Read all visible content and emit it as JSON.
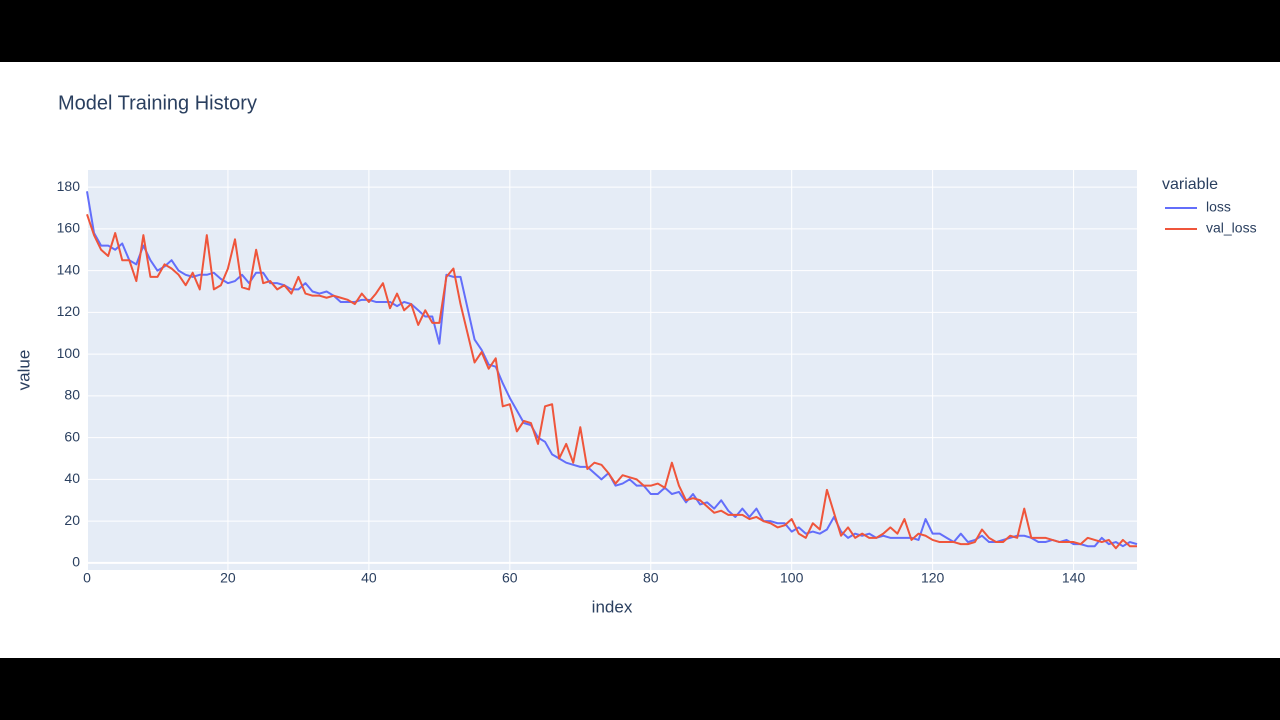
{
  "chart_data": {
    "type": "line",
    "title": "Model Training History",
    "x_label": "index",
    "y_label": "value",
    "legend_title": "variable",
    "legend_position": "right",
    "x": [
      0,
      1,
      2,
      3,
      4,
      5,
      6,
      7,
      8,
      9,
      10,
      11,
      12,
      13,
      14,
      15,
      16,
      17,
      18,
      19,
      20,
      21,
      22,
      23,
      24,
      25,
      26,
      27,
      28,
      29,
      30,
      31,
      32,
      33,
      34,
      35,
      36,
      37,
      38,
      39,
      40,
      41,
      42,
      43,
      44,
      45,
      46,
      47,
      48,
      49,
      50,
      51,
      52,
      53,
      54,
      55,
      56,
      57,
      58,
      59,
      60,
      61,
      62,
      63,
      64,
      65,
      66,
      67,
      68,
      69,
      70,
      71,
      72,
      73,
      74,
      75,
      76,
      77,
      78,
      79,
      80,
      81,
      82,
      83,
      84,
      85,
      86,
      87,
      88,
      89,
      90,
      91,
      92,
      93,
      94,
      95,
      96,
      97,
      98,
      99,
      100,
      101,
      102,
      103,
      104,
      105,
      106,
      107,
      108,
      109,
      110,
      111,
      112,
      113,
      114,
      115,
      116,
      117,
      118,
      119,
      120,
      121,
      122,
      123,
      124,
      125,
      126,
      127,
      128,
      129,
      130,
      131,
      132,
      133,
      134,
      135,
      136,
      137,
      138,
      139,
      140,
      141,
      142,
      143,
      144,
      145,
      146,
      147,
      148,
      149
    ],
    "series": [
      {
        "name": "loss",
        "color": "#636efa",
        "values": [
          178,
          158,
          152,
          152,
          150,
          153,
          145,
          143,
          152,
          145,
          140,
          142,
          145,
          140,
          138,
          137,
          138,
          138,
          139,
          136,
          134,
          135,
          138,
          134,
          139,
          139,
          134,
          134,
          133,
          131,
          131,
          134,
          130,
          129,
          130,
          128,
          125,
          125,
          125,
          126,
          126,
          125,
          125,
          125,
          123,
          125,
          124,
          121,
          118,
          118,
          105,
          138,
          137,
          137,
          122,
          107,
          102,
          95,
          94,
          86,
          79,
          73,
          67,
          66,
          60,
          58,
          52,
          50,
          48,
          47,
          46,
          46,
          43,
          40,
          43,
          37,
          38,
          40,
          37,
          37,
          33,
          33,
          36,
          33,
          34,
          29,
          33,
          28,
          29,
          26,
          30,
          25,
          22,
          26,
          22,
          26,
          20,
          20,
          19,
          19,
          15,
          17,
          14,
          15,
          14,
          16,
          22,
          15,
          12,
          14,
          13,
          14,
          12,
          13,
          12,
          12,
          12,
          12,
          11,
          21,
          14,
          14,
          12,
          10,
          14,
          10,
          11,
          13,
          10,
          10,
          11,
          12,
          13,
          13,
          12,
          10,
          10,
          11,
          10,
          11,
          9,
          9,
          8,
          8,
          12,
          9,
          10,
          8,
          10,
          9
        ]
      },
      {
        "name": "val_loss",
        "color": "#EF553B",
        "values": [
          167,
          157,
          150,
          147,
          158,
          145,
          145,
          135,
          157,
          137,
          137,
          143,
          141,
          138,
          133,
          139,
          131,
          157,
          131,
          133,
          141,
          155,
          132,
          131,
          150,
          134,
          135,
          131,
          133,
          129,
          137,
          129,
          128,
          128,
          127,
          128,
          127,
          126,
          124,
          129,
          125,
          129,
          134,
          122,
          129,
          121,
          124,
          114,
          121,
          115,
          115,
          137,
          141,
          124,
          110,
          96,
          101,
          93,
          98,
          75,
          76,
          63,
          68,
          67,
          57,
          75,
          76,
          50,
          57,
          48,
          65,
          45,
          48,
          47,
          43,
          38,
          42,
          41,
          40,
          37,
          37,
          38,
          36,
          48,
          37,
          30,
          31,
          30,
          27,
          24,
          25,
          23,
          23,
          23,
          21,
          22,
          20,
          19,
          17,
          18,
          21,
          14,
          12,
          19,
          16,
          35,
          24,
          13,
          17,
          12,
          14,
          12,
          12,
          14,
          17,
          14,
          21,
          11,
          14,
          13,
          11,
          10,
          10,
          10,
          9,
          9,
          10,
          16,
          12,
          10,
          10,
          13,
          12,
          26,
          12,
          12,
          12,
          11,
          10,
          10,
          10,
          9,
          12,
          11,
          10,
          11,
          7,
          11,
          8,
          8
        ]
      }
    ],
    "xlim": [
      0,
      149
    ],
    "xticks": [
      0,
      20,
      40,
      60,
      80,
      100,
      120,
      140
    ],
    "ylim": [
      -3.4,
      188.2
    ],
    "yticks": [
      0,
      20,
      40,
      60,
      80,
      100,
      120,
      140,
      160,
      180
    ],
    "grid": true
  }
}
